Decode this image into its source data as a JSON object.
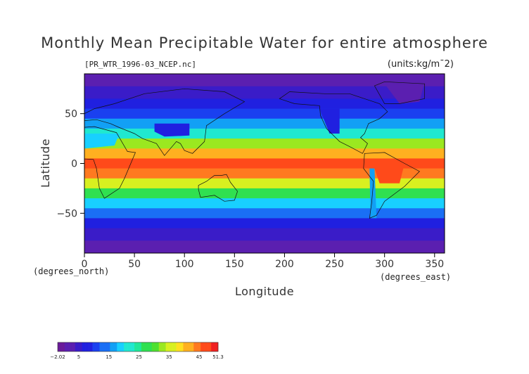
{
  "chart_data": {
    "type": "heatmap",
    "title": "Monthly Mean Precipitable Water for entire atmosphere",
    "source_label": "[PR_WTR_1996-03_NCEP.nc]",
    "units_label": "(units:kg/m¯2)",
    "xlabel": "Longitude",
    "ylabel": "Latitude",
    "x_unit_label": "(degrees_east)",
    "y_unit_label": "(degrees_north)",
    "xlim": [
      0,
      360
    ],
    "ylim": [
      -90,
      90
    ],
    "x_ticks": [
      0,
      50,
      100,
      150,
      200,
      250,
      300,
      350
    ],
    "y_ticks": [
      50,
      0,
      -50
    ],
    "y_tick_labels": [
      "50",
      "0",
      "−50"
    ],
    "colorbar": {
      "min": -2.02,
      "max": 51.3,
      "tick_values": [
        -2.02,
        5,
        15,
        25,
        35,
        45,
        51.3
      ],
      "tick_labels": [
        "−2.02",
        "5",
        "15",
        "25",
        "35",
        "45",
        "51.3"
      ],
      "colors": [
        "#6a1b9a",
        "#5b1fb0",
        "#3a1cc8",
        "#2020e0",
        "#1a40f0",
        "#1a6ff5",
        "#12a0f5",
        "#18d0ff",
        "#20e8d0",
        "#20e89a",
        "#30e050",
        "#4ee030",
        "#9be820",
        "#d8f020",
        "#ffe020",
        "#ffb020",
        "#ff7a20",
        "#ff4a1a",
        "#f02020",
        "#ffd0d0"
      ]
    },
    "lat_band_values": [
      {
        "lat": 85,
        "value": 3
      },
      {
        "lat": 70,
        "value": 6
      },
      {
        "lat": 60,
        "value": 8
      },
      {
        "lat": 50,
        "value": 11
      },
      {
        "lat": 40,
        "value": 15
      },
      {
        "lat": 30,
        "value": 22
      },
      {
        "lat": 20,
        "value": 32
      },
      {
        "lat": 10,
        "value": 42
      },
      {
        "lat": 0,
        "value": 46
      },
      {
        "lat": -10,
        "value": 44
      },
      {
        "lat": -20,
        "value": 36
      },
      {
        "lat": -30,
        "value": 27
      },
      {
        "lat": -40,
        "value": 19
      },
      {
        "lat": -50,
        "value": 13
      },
      {
        "lat": -60,
        "value": 9
      },
      {
        "lat": -70,
        "value": 5
      },
      {
        "lat": -85,
        "value": 1
      }
    ]
  }
}
